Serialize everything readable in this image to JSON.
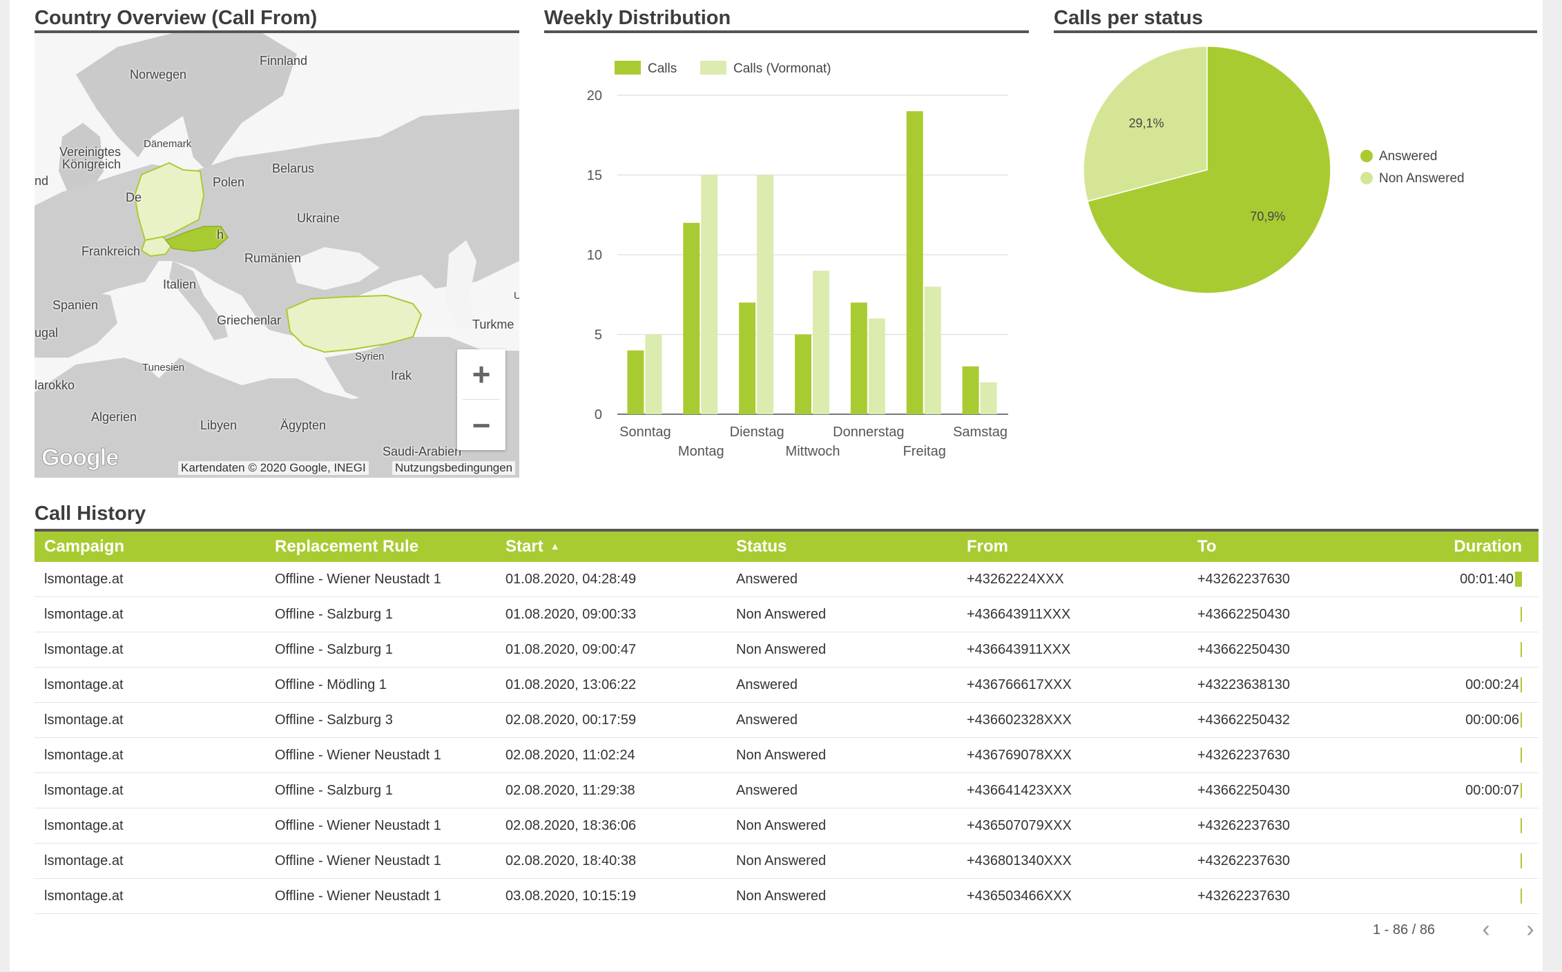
{
  "sections": {
    "map_title": "Country Overview (Call From)",
    "bar_title": "Weekly Distribution",
    "pie_title": "Calls per status",
    "table_title": "Call History"
  },
  "map": {
    "labels": {
      "finnland": "Finnland",
      "norwegen": "Norwegen",
      "vereinigtes": "Vereinigtes",
      "koenigreich": "Königreich",
      "daenemark": "Dänemark",
      "nd": "nd",
      "de": "De",
      "polen": "Polen",
      "belarus": "Belarus",
      "ukraine": "Ukraine",
      "frankreich": "Frankreich",
      "h": "h",
      "rumaenien": "Rumänien",
      "italien": "Italien",
      "spanien": "Spanien",
      "ugal": "ugal",
      "griechenland": "Griechenlar",
      "turkme": "Turkme",
      "u": "U",
      "tunesien": "Tunesien",
      "syrien": "Syrien",
      "irak": "Irak",
      "marokko": "larokko",
      "algerien": "Algerien",
      "libyen": "Libyen",
      "aegypten": "Ägypten",
      "saudi": "Saudi-Arabien"
    },
    "google_logo": "Google",
    "attribution": "Kartendaten © 2020 Google, INEGI",
    "terms": "Nutzungsbedingungen",
    "zoom_in": "+",
    "zoom_out": "−",
    "colors": {
      "land": "#c8c8c8",
      "water": "#f4f4f4",
      "highlight_light": "#e9f2c6",
      "highlight_dark": "#a9cb32"
    }
  },
  "chart_data": [
    {
      "type": "bar",
      "title": "Weekly Distribution",
      "categories": [
        "Sonntag",
        "Montag",
        "Dienstag",
        "Mittwoch",
        "Donnerstag",
        "Freitag",
        "Samstag"
      ],
      "series": [
        {
          "name": "Calls",
          "color": "#a9cb32",
          "values": [
            4,
            12,
            7,
            5,
            7,
            19,
            3
          ]
        },
        {
          "name": "Calls (Vormonat)",
          "color": "#dcebae",
          "values": [
            5,
            15,
            15,
            9,
            6,
            8,
            2
          ]
        }
      ],
      "yticks": [
        "0",
        "5",
        "10",
        "15",
        "20"
      ],
      "ylim": [
        0,
        20
      ],
      "legend": "top-left"
    },
    {
      "type": "pie",
      "title": "Calls per status",
      "slices": [
        {
          "name": "Answered",
          "value": 70.9,
          "label": "70,9%",
          "color": "#a9cb32"
        },
        {
          "name": "Non Answered",
          "value": 29.1,
          "label": "29,1%",
          "color": "#d4e696"
        }
      ],
      "legend": "right"
    }
  ],
  "table": {
    "headers": {
      "campaign": "Campaign",
      "rule": "Replacement Rule",
      "start": "Start",
      "status": "Status",
      "from": "From",
      "to": "To",
      "duration": "Duration"
    },
    "sort_icon": "▲",
    "rows": [
      {
        "campaign": "lsmontage.at",
        "rule": "Offline - Wiener Neustadt 1",
        "start": "01.08.2020, 04:28:49",
        "status": "Answered",
        "from": "+43262224XXX",
        "to": "+43262237630",
        "duration": "00:01:40",
        "dur_fraction": 1.0
      },
      {
        "campaign": "lsmontage.at",
        "rule": "Offline - Salzburg 1",
        "start": "01.08.2020, 09:00:33",
        "status": "Non Answered",
        "from": "+436643911XXX",
        "to": "+43662250430",
        "duration": "",
        "dur_fraction": 0.0
      },
      {
        "campaign": "lsmontage.at",
        "rule": "Offline - Salzburg 1",
        "start": "01.08.2020, 09:00:47",
        "status": "Non Answered",
        "from": "+436643911XXX",
        "to": "+43662250430",
        "duration": "",
        "dur_fraction": 0.0
      },
      {
        "campaign": "lsmontage.at",
        "rule": "Offline - Mödling 1",
        "start": "01.08.2020, 13:06:22",
        "status": "Answered",
        "from": "+436766617XXX",
        "to": "+43223638130",
        "duration": "00:00:24",
        "dur_fraction": 0.24
      },
      {
        "campaign": "lsmontage.at",
        "rule": "Offline - Salzburg 3",
        "start": "02.08.2020, 00:17:59",
        "status": "Answered",
        "from": "+436602328XXX",
        "to": "+43662250432",
        "duration": "00:00:06",
        "dur_fraction": 0.06
      },
      {
        "campaign": "lsmontage.at",
        "rule": "Offline - Wiener Neustadt 1",
        "start": "02.08.2020, 11:02:24",
        "status": "Non Answered",
        "from": "+436769078XXX",
        "to": "+43262237630",
        "duration": "",
        "dur_fraction": 0.0
      },
      {
        "campaign": "lsmontage.at",
        "rule": "Offline - Salzburg 1",
        "start": "02.08.2020, 11:29:38",
        "status": "Answered",
        "from": "+436641423XXX",
        "to": "+43662250430",
        "duration": "00:00:07",
        "dur_fraction": 0.07
      },
      {
        "campaign": "lsmontage.at",
        "rule": "Offline - Wiener Neustadt 1",
        "start": "02.08.2020, 18:36:06",
        "status": "Non Answered",
        "from": "+436507079XXX",
        "to": "+43262237630",
        "duration": "",
        "dur_fraction": 0.0
      },
      {
        "campaign": "lsmontage.at",
        "rule": "Offline - Wiener Neustadt 1",
        "start": "02.08.2020, 18:40:38",
        "status": "Non Answered",
        "from": "+436801340XXX",
        "to": "+43262237630",
        "duration": "",
        "dur_fraction": 0.0
      },
      {
        "campaign": "lsmontage.at",
        "rule": "Offline - Wiener Neustadt 1",
        "start": "03.08.2020, 10:15:19",
        "status": "Non Answered",
        "from": "+436503466XXX",
        "to": "+43262237630",
        "duration": "",
        "dur_fraction": 0.0
      }
    ],
    "pagination": "1 - 86 / 86",
    "prev_icon": "‹",
    "next_icon": "›"
  }
}
